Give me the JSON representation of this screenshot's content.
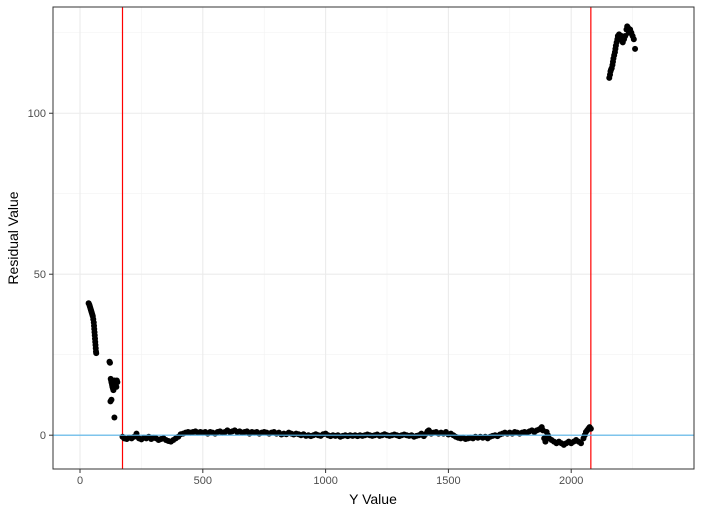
{
  "chart_data": {
    "type": "scatter",
    "title": "",
    "xlabel": "Y Value",
    "ylabel": "Residual Value",
    "xlim": [
      -110,
      2500
    ],
    "ylim": [
      -10.5,
      133
    ],
    "x_ticks": [
      0,
      500,
      1000,
      1500,
      2000
    ],
    "x_tick_labels": [
      "0",
      "500",
      "1000",
      "1500",
      "2000"
    ],
    "y_ticks": [
      0,
      50,
      100
    ],
    "y_tick_labels": [
      "0",
      "50",
      "100"
    ],
    "grid": true,
    "theme": "bw",
    "hlines": [
      {
        "y": 0,
        "color": "#56B4E9"
      }
    ],
    "vlines": [
      {
        "x": 173,
        "color": "#FF0000"
      },
      {
        "x": 2080,
        "color": "#FF0000"
      }
    ],
    "point_color": "#000000",
    "points": [
      [
        35,
        41
      ],
      [
        38,
        40.5
      ],
      [
        40,
        40
      ],
      [
        42,
        39.5
      ],
      [
        44,
        39
      ],
      [
        46,
        38.5
      ],
      [
        48,
        38
      ],
      [
        50,
        37.5
      ],
      [
        52,
        37
      ],
      [
        54,
        36
      ],
      [
        56,
        35
      ],
      [
        57,
        34
      ],
      [
        58,
        33
      ],
      [
        59,
        32
      ],
      [
        60,
        31
      ],
      [
        61,
        30
      ],
      [
        62,
        29
      ],
      [
        63,
        28
      ],
      [
        64,
        27
      ],
      [
        65,
        26
      ],
      [
        66,
        25.5
      ],
      [
        120,
        22.8
      ],
      [
        122,
        22.5
      ],
      [
        125,
        17.5
      ],
      [
        127,
        17
      ],
      [
        128,
        16.5
      ],
      [
        130,
        16
      ],
      [
        131,
        15.5
      ],
      [
        132,
        15
      ],
      [
        134,
        14.5
      ],
      [
        136,
        14
      ],
      [
        138,
        16.5
      ],
      [
        140,
        17
      ],
      [
        142,
        16
      ],
      [
        145,
        15.5
      ],
      [
        148,
        15
      ],
      [
        150,
        17
      ],
      [
        152,
        16.5
      ],
      [
        128,
        11
      ],
      [
        124,
        10.5
      ],
      [
        140,
        5.5
      ],
      [
        173,
        -0.5
      ],
      [
        180,
        -1
      ],
      [
        190,
        -1.2
      ],
      [
        200,
        -0.8
      ],
      [
        210,
        -1
      ],
      [
        220,
        -0.5
      ],
      [
        230,
        0.5
      ],
      [
        240,
        -1
      ],
      [
        250,
        -1.3
      ],
      [
        260,
        -0.8
      ],
      [
        270,
        -1
      ],
      [
        280,
        -0.5
      ],
      [
        290,
        -1.2
      ],
      [
        300,
        -0.8
      ],
      [
        310,
        -1
      ],
      [
        320,
        -1.5
      ],
      [
        330,
        -1.2
      ],
      [
        340,
        -1
      ],
      [
        350,
        -1.5
      ],
      [
        360,
        -1.8
      ],
      [
        370,
        -2
      ],
      [
        380,
        -1.5
      ],
      [
        390,
        -1
      ],
      [
        400,
        -0.5
      ],
      [
        410,
        0.3
      ],
      [
        420,
        0.5
      ],
      [
        430,
        0.8
      ],
      [
        440,
        1
      ],
      [
        450,
        0.8
      ],
      [
        460,
        1
      ],
      [
        470,
        1.2
      ],
      [
        480,
        0.8
      ],
      [
        490,
        1
      ],
      [
        500,
        0.8
      ],
      [
        510,
        1
      ],
      [
        520,
        0.5
      ],
      [
        530,
        1
      ],
      [
        540,
        0.8
      ],
      [
        550,
        0.5
      ],
      [
        560,
        1
      ],
      [
        570,
        1.2
      ],
      [
        580,
        0.8
      ],
      [
        590,
        1
      ],
      [
        600,
        1.5
      ],
      [
        610,
        1
      ],
      [
        620,
        1.2
      ],
      [
        630,
        1.5
      ],
      [
        640,
        1
      ],
      [
        650,
        1.2
      ],
      [
        660,
        0.8
      ],
      [
        670,
        1
      ],
      [
        680,
        1.2
      ],
      [
        690,
        0.5
      ],
      [
        700,
        1
      ],
      [
        710,
        0.8
      ],
      [
        720,
        1
      ],
      [
        730,
        0.5
      ],
      [
        740,
        0.8
      ],
      [
        750,
        1
      ],
      [
        760,
        0.8
      ],
      [
        770,
        0.5
      ],
      [
        780,
        0.8
      ],
      [
        790,
        1
      ],
      [
        800,
        0.5
      ],
      [
        810,
        0.8
      ],
      [
        820,
        0.2
      ],
      [
        830,
        0.5
      ],
      [
        840,
        0.3
      ],
      [
        850,
        0.8
      ],
      [
        860,
        0.5
      ],
      [
        870,
        0.2
      ],
      [
        880,
        0.5
      ],
      [
        890,
        0.3
      ],
      [
        900,
        0
      ],
      [
        910,
        0.3
      ],
      [
        920,
        -0.2
      ],
      [
        930,
        0
      ],
      [
        940,
        -0.3
      ],
      [
        950,
        0
      ],
      [
        960,
        0.3
      ],
      [
        970,
        0
      ],
      [
        980,
        -0.2
      ],
      [
        990,
        0.3
      ],
      [
        1000,
        0.5
      ],
      [
        1010,
        0
      ],
      [
        1020,
        -0.3
      ],
      [
        1030,
        0
      ],
      [
        1040,
        -0.2
      ],
      [
        1050,
        0
      ],
      [
        1060,
        -0.5
      ],
      [
        1070,
        -0.2
      ],
      [
        1080,
        0
      ],
      [
        1090,
        -0.3
      ],
      [
        1100,
        0
      ],
      [
        1110,
        -0.2
      ],
      [
        1120,
        0
      ],
      [
        1130,
        -0.3
      ],
      [
        1140,
        0
      ],
      [
        1150,
        -0.2
      ],
      [
        1160,
        0
      ],
      [
        1170,
        0.2
      ],
      [
        1180,
        0
      ],
      [
        1190,
        -0.2
      ],
      [
        1200,
        0
      ],
      [
        1210,
        0.2
      ],
      [
        1220,
        -0.2
      ],
      [
        1230,
        0
      ],
      [
        1240,
        0.3
      ],
      [
        1250,
        0
      ],
      [
        1260,
        -0.2
      ],
      [
        1270,
        0
      ],
      [
        1280,
        0.2
      ],
      [
        1290,
        0
      ],
      [
        1300,
        -0.3
      ],
      [
        1310,
        0
      ],
      [
        1320,
        0.2
      ],
      [
        1330,
        0
      ],
      [
        1340,
        -0.2
      ],
      [
        1350,
        0
      ],
      [
        1360,
        -0.5
      ],
      [
        1370,
        -0.2
      ],
      [
        1380,
        0
      ],
      [
        1390,
        0.5
      ],
      [
        1400,
        -0.3
      ],
      [
        1410,
        0.5
      ],
      [
        1415,
        1.2
      ],
      [
        1420,
        1.5
      ],
      [
        1425,
        1
      ],
      [
        1430,
        0.5
      ],
      [
        1440,
        0.8
      ],
      [
        1450,
        1
      ],
      [
        1460,
        0.5
      ],
      [
        1470,
        0.8
      ],
      [
        1480,
        0.5
      ],
      [
        1490,
        1
      ],
      [
        1500,
        0.2
      ],
      [
        1510,
        0.5
      ],
      [
        1520,
        0
      ],
      [
        1530,
        -0.5
      ],
      [
        1540,
        -0.8
      ],
      [
        1550,
        -1
      ],
      [
        1560,
        -0.8
      ],
      [
        1570,
        -1.2
      ],
      [
        1580,
        -1
      ],
      [
        1590,
        -0.8
      ],
      [
        1600,
        -1
      ],
      [
        1610,
        -0.5
      ],
      [
        1620,
        -0.8
      ],
      [
        1630,
        -0.5
      ],
      [
        1640,
        -0.8
      ],
      [
        1650,
        -0.5
      ],
      [
        1660,
        -1
      ],
      [
        1670,
        -0.5
      ],
      [
        1680,
        -0.2
      ],
      [
        1690,
        0
      ],
      [
        1700,
        -0.3
      ],
      [
        1710,
        0.2
      ],
      [
        1720,
        0.5
      ],
      [
        1730,
        0.8
      ],
      [
        1740,
        0.5
      ],
      [
        1750,
        0.8
      ],
      [
        1760,
        0.5
      ],
      [
        1770,
        1
      ],
      [
        1780,
        0.8
      ],
      [
        1790,
        0.5
      ],
      [
        1800,
        0.8
      ],
      [
        1810,
        1
      ],
      [
        1820,
        0.8
      ],
      [
        1830,
        1.2
      ],
      [
        1840,
        1.5
      ],
      [
        1850,
        1
      ],
      [
        1860,
        1.5
      ],
      [
        1870,
        1.8
      ],
      [
        1875,
        2
      ],
      [
        1880,
        2.5
      ],
      [
        1885,
        1.5
      ],
      [
        1890,
        -1
      ],
      [
        1895,
        -2
      ],
      [
        1900,
        1
      ],
      [
        1905,
        0
      ],
      [
        1910,
        -1
      ],
      [
        1920,
        -1.5
      ],
      [
        1930,
        -2
      ],
      [
        1940,
        -2.5
      ],
      [
        1950,
        -2
      ],
      [
        1960,
        -2.5
      ],
      [
        1970,
        -3
      ],
      [
        1980,
        -2.5
      ],
      [
        1990,
        -2
      ],
      [
        2000,
        -2.5
      ],
      [
        2010,
        -2
      ],
      [
        2020,
        -1.5
      ],
      [
        2030,
        -2
      ],
      [
        2040,
        -2.5
      ],
      [
        2050,
        -1
      ],
      [
        2055,
        0
      ],
      [
        2060,
        1
      ],
      [
        2065,
        1.5
      ],
      [
        2070,
        2
      ],
      [
        2075,
        2.5
      ],
      [
        2080,
        2
      ],
      [
        2155,
        111
      ],
      [
        2158,
        112
      ],
      [
        2160,
        113
      ],
      [
        2162,
        113.5
      ],
      [
        2165,
        114
      ],
      [
        2168,
        115
      ],
      [
        2170,
        116
      ],
      [
        2172,
        117
      ],
      [
        2175,
        118
      ],
      [
        2178,
        119
      ],
      [
        2180,
        120
      ],
      [
        2182,
        121
      ],
      [
        2185,
        122
      ],
      [
        2188,
        123
      ],
      [
        2190,
        124
      ],
      [
        2195,
        124.5
      ],
      [
        2200,
        123
      ],
      [
        2205,
        124
      ],
      [
        2210,
        122
      ],
      [
        2215,
        123
      ],
      [
        2220,
        124
      ],
      [
        2225,
        126
      ],
      [
        2228,
        127
      ],
      [
        2232,
        126.5
      ],
      [
        2235,
        125
      ],
      [
        2240,
        126
      ],
      [
        2245,
        125
      ],
      [
        2250,
        124
      ],
      [
        2255,
        123
      ],
      [
        2260,
        120
      ]
    ]
  }
}
